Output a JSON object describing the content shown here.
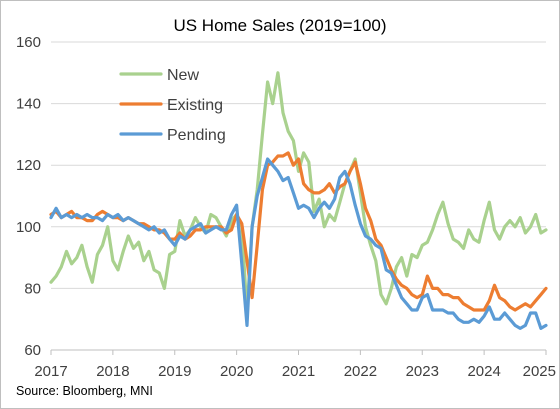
{
  "chart_data": {
    "type": "line",
    "title": "US Home Sales (2019=100)",
    "source": "Source: Bloomberg, MNI",
    "xlabel": "",
    "ylabel": "",
    "xlim": [
      2017,
      2025
    ],
    "ylim": [
      60,
      160
    ],
    "yticks": [
      60,
      80,
      100,
      120,
      140,
      160
    ],
    "xticks": [
      2017,
      2018,
      2019,
      2020,
      2021,
      2022,
      2023,
      2024,
      2025
    ],
    "xtick_labels": [
      "2017",
      "2018",
      "2019",
      "2020",
      "2021",
      "2022",
      "2023",
      "2024",
      "2025"
    ],
    "ytick_labels": [
      "60",
      "80",
      "100",
      "120",
      "140",
      "160"
    ],
    "grid": "horizontal",
    "legend_position": "top-left",
    "series": [
      {
        "name": "New",
        "color": "#a9d18e",
        "x": [
          2017.0,
          2017.083,
          2017.167,
          2017.25,
          2017.333,
          2017.417,
          2017.5,
          2017.583,
          2017.667,
          2017.75,
          2017.833,
          2017.917,
          2018.0,
          2018.083,
          2018.167,
          2018.25,
          2018.333,
          2018.417,
          2018.5,
          2018.583,
          2018.667,
          2018.75,
          2018.833,
          2018.917,
          2019.0,
          2019.083,
          2019.167,
          2019.25,
          2019.333,
          2019.417,
          2019.5,
          2019.583,
          2019.667,
          2019.75,
          2019.833,
          2019.917,
          2020.0,
          2020.083,
          2020.167,
          2020.25,
          2020.333,
          2020.417,
          2020.5,
          2020.583,
          2020.667,
          2020.75,
          2020.833,
          2020.917,
          2021.0,
          2021.083,
          2021.167,
          2021.25,
          2021.333,
          2021.417,
          2021.5,
          2021.583,
          2021.667,
          2021.75,
          2021.833,
          2021.917,
          2022.0,
          2022.083,
          2022.167,
          2022.25,
          2022.333,
          2022.417,
          2022.5,
          2022.583,
          2022.667,
          2022.75,
          2022.833,
          2022.917,
          2023.0,
          2023.083,
          2023.167,
          2023.25,
          2023.333,
          2023.417,
          2023.5,
          2023.583,
          2023.667,
          2023.75,
          2023.833,
          2023.917,
          2024.0,
          2024.083,
          2024.167,
          2024.25,
          2024.333,
          2024.417,
          2024.5,
          2024.583,
          2024.667,
          2024.75,
          2024.833,
          2024.917,
          2025.0
        ],
        "values": [
          82,
          84,
          87,
          92,
          88,
          90,
          94,
          87,
          82,
          91,
          94,
          100,
          89,
          86,
          92,
          97,
          93,
          95,
          89,
          92,
          86,
          85,
          80,
          91,
          92,
          102,
          97,
          99,
          103,
          100,
          98,
          104,
          103,
          100,
          97,
          102,
          104,
          100,
          72,
          100,
          112,
          130,
          147,
          140,
          150,
          137,
          131,
          128,
          118,
          124,
          121,
          105,
          109,
          100,
          104,
          102,
          108,
          114,
          118,
          122,
          111,
          100,
          94,
          89,
          78,
          75,
          80,
          87,
          90,
          84,
          91,
          90,
          94,
          95,
          99,
          104,
          108,
          101,
          96,
          95,
          93,
          99,
          96,
          95,
          102,
          108,
          99,
          96,
          100,
          102,
          100,
          103,
          98,
          100,
          104,
          98,
          99
        ]
      },
      {
        "name": "Existing",
        "color": "#ed7d31",
        "x": [
          2017.0,
          2017.083,
          2017.167,
          2017.25,
          2017.333,
          2017.417,
          2017.5,
          2017.583,
          2017.667,
          2017.75,
          2017.833,
          2017.917,
          2018.0,
          2018.083,
          2018.167,
          2018.25,
          2018.333,
          2018.417,
          2018.5,
          2018.583,
          2018.667,
          2018.75,
          2018.833,
          2018.917,
          2019.0,
          2019.083,
          2019.167,
          2019.25,
          2019.333,
          2019.417,
          2019.5,
          2019.583,
          2019.667,
          2019.75,
          2019.833,
          2019.917,
          2020.0,
          2020.083,
          2020.167,
          2020.25,
          2020.333,
          2020.417,
          2020.5,
          2020.583,
          2020.667,
          2020.75,
          2020.833,
          2020.917,
          2021.0,
          2021.083,
          2021.167,
          2021.25,
          2021.333,
          2021.417,
          2021.5,
          2021.583,
          2021.667,
          2021.75,
          2021.833,
          2021.917,
          2022.0,
          2022.083,
          2022.167,
          2022.25,
          2022.333,
          2022.417,
          2022.5,
          2022.583,
          2022.667,
          2022.75,
          2022.833,
          2022.917,
          2023.0,
          2023.083,
          2023.167,
          2023.25,
          2023.333,
          2023.417,
          2023.5,
          2023.583,
          2023.667,
          2023.75,
          2023.833,
          2023.917,
          2024.0,
          2024.083,
          2024.167,
          2024.25,
          2024.333,
          2024.417,
          2024.5,
          2024.583,
          2024.667,
          2024.75,
          2024.833,
          2024.917,
          2025.0
        ],
        "values": [
          104,
          105,
          103,
          104,
          105,
          103,
          103,
          102,
          102,
          104,
          105,
          104,
          103,
          103,
          102,
          103,
          102,
          101,
          101,
          100,
          99,
          99,
          98,
          96,
          96,
          98,
          96,
          97,
          99,
          99,
          100,
          100,
          100,
          100,
          98,
          99,
          104,
          101,
          89,
          77,
          94,
          112,
          120,
          121,
          123,
          123,
          124,
          120,
          122,
          114,
          112,
          111,
          111,
          112,
          114,
          111,
          113,
          114,
          118,
          121,
          114,
          106,
          102,
          96,
          94,
          90,
          86,
          83,
          81,
          80,
          78,
          77,
          78,
          84,
          80,
          80,
          78,
          78,
          77,
          77,
          75,
          74,
          73,
          73,
          73,
          76,
          81,
          77,
          76,
          74,
          73,
          74,
          75,
          74,
          76,
          78,
          80
        ]
      },
      {
        "name": "Pending",
        "color": "#5b9bd5",
        "x": [
          2017.0,
          2017.083,
          2017.167,
          2017.25,
          2017.333,
          2017.417,
          2017.5,
          2017.583,
          2017.667,
          2017.75,
          2017.833,
          2017.917,
          2018.0,
          2018.083,
          2018.167,
          2018.25,
          2018.333,
          2018.417,
          2018.5,
          2018.583,
          2018.667,
          2018.75,
          2018.833,
          2018.917,
          2019.0,
          2019.083,
          2019.167,
          2019.25,
          2019.333,
          2019.417,
          2019.5,
          2019.583,
          2019.667,
          2019.75,
          2019.833,
          2019.917,
          2020.0,
          2020.083,
          2020.167,
          2020.25,
          2020.333,
          2020.417,
          2020.5,
          2020.583,
          2020.667,
          2020.75,
          2020.833,
          2020.917,
          2021.0,
          2021.083,
          2021.167,
          2021.25,
          2021.333,
          2021.417,
          2021.5,
          2021.583,
          2021.667,
          2021.75,
          2021.833,
          2021.917,
          2022.0,
          2022.083,
          2022.167,
          2022.25,
          2022.333,
          2022.417,
          2022.5,
          2022.583,
          2022.667,
          2022.75,
          2022.833,
          2022.917,
          2023.0,
          2023.083,
          2023.167,
          2023.25,
          2023.333,
          2023.417,
          2023.5,
          2023.583,
          2023.667,
          2023.75,
          2023.833,
          2023.917,
          2024.0,
          2024.083,
          2024.167,
          2024.25,
          2024.333,
          2024.417,
          2024.5,
          2024.583,
          2024.667,
          2024.75,
          2024.833,
          2024.917,
          2025.0
        ],
        "values": [
          103,
          106,
          103,
          104,
          103,
          104,
          103,
          104,
          103,
          103,
          102,
          104,
          103,
          104,
          102,
          103,
          102,
          101,
          100,
          99,
          100,
          98,
          99,
          96,
          94,
          97,
          96,
          99,
          100,
          101,
          98,
          99,
          100,
          99,
          99,
          104,
          107,
          88,
          68,
          100,
          110,
          116,
          122,
          120,
          118,
          115,
          116,
          111,
          106,
          107,
          106,
          103,
          106,
          108,
          106,
          109,
          116,
          118,
          114,
          107,
          101,
          97,
          96,
          94,
          93,
          86,
          85,
          81,
          77,
          75,
          73,
          73,
          77,
          78,
          73,
          73,
          73,
          72,
          72,
          70,
          69,
          69,
          70,
          69,
          71,
          74,
          70,
          70,
          72,
          70,
          68,
          67,
          68,
          72,
          72,
          67,
          68
        ]
      }
    ]
  }
}
